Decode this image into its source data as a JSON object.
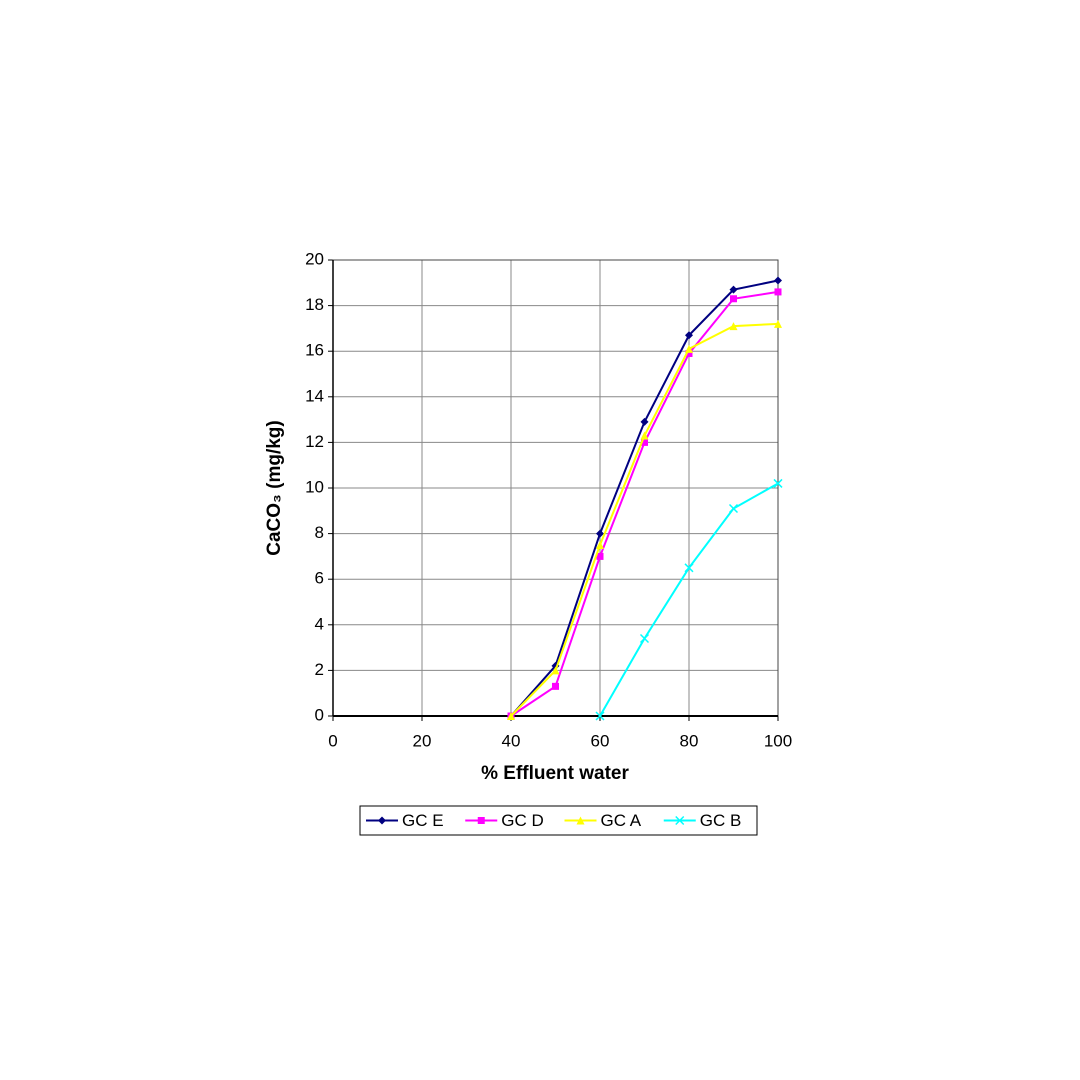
{
  "chart_data": {
    "type": "line",
    "x_label": "% Effluent water",
    "y_label": "CaCO₃ (mg/kg)",
    "x": [
      40,
      50,
      60,
      70,
      80,
      90,
      100
    ],
    "series": [
      {
        "name": "GC E",
        "color": "#000080",
        "marker": "diamond",
        "values": [
          0,
          2.2,
          8.0,
          12.9,
          16.7,
          18.7,
          19.1
        ]
      },
      {
        "name": "GC D",
        "color": "#ff00ff",
        "marker": "square",
        "values": [
          0,
          1.3,
          7.0,
          12.0,
          15.9,
          18.3,
          18.6
        ]
      },
      {
        "name": "GC A",
        "color": "#ffff00",
        "marker": "triangle",
        "values": [
          0,
          2.0,
          7.5,
          12.3,
          16.1,
          17.1,
          17.2
        ]
      },
      {
        "name": "GC B",
        "color": "#00ffff",
        "marker": "x",
        "values": [
          null,
          null,
          0,
          3.4,
          6.5,
          9.1,
          10.2
        ]
      }
    ],
    "xlim": [
      0,
      100
    ],
    "xticks": [
      0,
      20,
      40,
      60,
      80,
      100
    ],
    "ylim": [
      0,
      20
    ],
    "yticks": [
      0,
      2,
      4,
      6,
      8,
      10,
      12,
      14,
      16,
      18,
      20
    ],
    "grid": true,
    "legend": "bottom"
  }
}
